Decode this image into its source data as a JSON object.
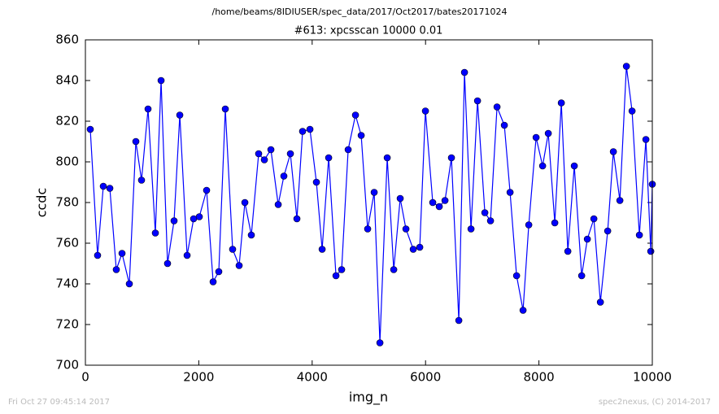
{
  "chart_data": {
    "type": "line",
    "suptitle": "/home/beams/8IDIUSER/spec_data/2017/Oct2017/bates20171024",
    "title": "#613: xpcsscan 10000 0.01",
    "xlabel": "img_n",
    "ylabel": "ccdc",
    "footer_left": "Fri Oct 27 09:45:14 2017",
    "footer_right": "spec2nexus, (C) 2014-2017",
    "xlim": [
      0,
      10000
    ],
    "xticks": [
      0,
      2000,
      4000,
      6000,
      8000,
      10000
    ],
    "ylim": [
      700,
      860
    ],
    "yticks": [
      700,
      720,
      740,
      760,
      780,
      800,
      820,
      840,
      860
    ],
    "series": [
      {
        "color": "#0000ff",
        "x": [
          86,
          215,
          316,
          431,
          545,
          646,
          775,
          890,
          990,
          1105,
          1234,
          1335,
          1449,
          1564,
          1665,
          1794,
          1909,
          2009,
          2138,
          2253,
          2353,
          2468,
          2597,
          2712,
          2813,
          2927,
          3056,
          3157,
          3272,
          3401,
          3501,
          3616,
          3731,
          3831,
          3961,
          4075,
          4176,
          4291,
          4420,
          4520,
          4635,
          4764,
          4865,
          4979,
          5094,
          5195,
          5324,
          5439,
          5553,
          5654,
          5783,
          5898,
          5998,
          6127,
          6242,
          6343,
          6457,
          6587,
          6687,
          6802,
          6917,
          7046,
          7146,
          7261,
          7390,
          7491,
          7606,
          7720,
          7821,
          7950,
          8065,
          8165,
          8280,
          8395,
          8510,
          8624,
          8754,
          8854,
          8969,
          9084,
          9213,
          9313,
          9428,
          9543,
          9643,
          9772,
          9887,
          9973,
          10000
        ],
        "values": [
          816,
          754,
          788,
          787,
          747,
          755,
          740,
          810,
          791,
          826,
          765,
          840,
          750,
          771,
          823,
          754,
          772,
          773,
          786,
          741,
          746,
          826,
          757,
          749,
          780,
          764,
          804,
          801,
          806,
          779,
          793,
          804,
          772,
          815,
          816,
          790,
          757,
          802,
          744,
          747,
          806,
          823,
          813,
          767,
          785,
          711,
          802,
          747,
          782,
          767,
          757,
          758,
          825,
          780,
          778,
          781,
          802,
          722,
          844,
          767,
          830,
          775,
          771,
          827,
          818,
          785,
          744,
          727,
          769,
          812,
          798,
          814,
          770,
          829,
          756,
          798,
          744,
          762,
          772,
          731,
          766,
          805,
          781,
          847,
          825,
          764,
          811,
          756,
          789
        ]
      }
    ]
  }
}
